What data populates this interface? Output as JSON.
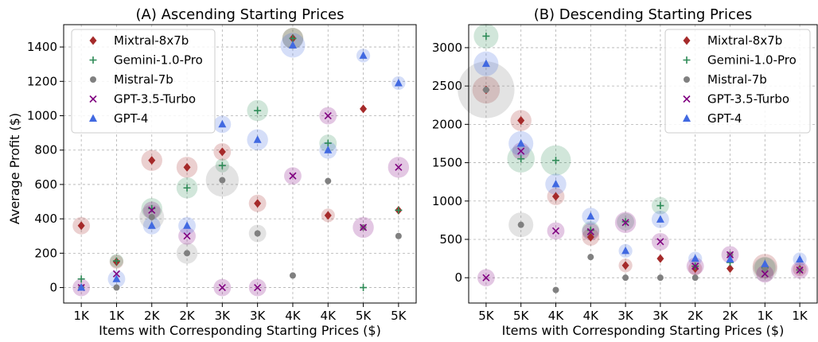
{
  "figure": {
    "y_label": "Average Profit ($)"
  },
  "colors": {
    "Mixtral-8x7b": "#a52a2a",
    "Gemini-1.0-Pro": "#2e8b57",
    "Mistral-7b": "#808080",
    "GPT-3.5-Turbo": "#800080",
    "GPT-4": "#4169e1"
  },
  "markers": {
    "Mixtral-8x7b": "diamond",
    "Gemini-1.0-Pro": "plus",
    "Mistral-7b": "circle",
    "GPT-3.5-Turbo": "x",
    "GPT-4": "triangle"
  },
  "chart_data": [
    {
      "type": "scatter",
      "title": "(A) Ascending Starting Prices",
      "xlabel": "Items with Corresponding Starting Prices ($)",
      "ylabel": "Average Profit ($)",
      "categories": [
        "1K",
        "1K",
        "2K",
        "2K",
        "3K",
        "3K",
        "4K",
        "4K",
        "5K",
        "5K"
      ],
      "ylim": [
        -90,
        1530
      ],
      "yticks": [
        0,
        200,
        400,
        600,
        800,
        1000,
        1200,
        1400
      ],
      "grid": true,
      "legend": "top-left",
      "series": [
        {
          "name": "Mixtral-8x7b",
          "values": [
            360,
            150,
            740,
            700,
            790,
            490,
            1450,
            420,
            1040,
            450
          ],
          "sizes": [
            2,
            1,
            3,
            3,
            2,
            2,
            3,
            1,
            0,
            0
          ]
        },
        {
          "name": "Gemini-1.0-Pro",
          "values": [
            50,
            155,
            460,
            580,
            710,
            1030,
            1450,
            840,
            0,
            450
          ],
          "sizes": [
            0,
            1,
            3,
            3,
            1,
            3,
            3,
            2,
            0,
            0
          ]
        },
        {
          "name": "Mistral-7b",
          "values": [
            0,
            0,
            410,
            200,
            625,
            315,
            70,
            620,
            350,
            300
          ],
          "sizes": [
            0,
            0,
            4,
            3,
            7,
            2,
            0,
            0,
            0,
            0
          ]
        },
        {
          "name": "GPT-3.5-Turbo",
          "values": [
            0,
            80,
            450,
            300,
            0,
            0,
            650,
            1000,
            350,
            700
          ],
          "sizes": [
            2,
            0,
            2,
            2,
            2,
            2,
            2,
            2,
            3,
            3
          ]
        },
        {
          "name": "GPT-4",
          "values": [
            0,
            50,
            360,
            360,
            950,
            860,
            1410,
            800,
            1350,
            1190
          ],
          "sizes": [
            0,
            2,
            2,
            2,
            2,
            3,
            4,
            2,
            1,
            1
          ]
        }
      ]
    },
    {
      "type": "scatter",
      "title": "(B) Descending Starting Prices",
      "xlabel": "Items with Corresponding Starting Prices ($)",
      "ylabel": "",
      "categories": [
        "5K",
        "5K",
        "4K",
        "4K",
        "3K",
        "3K",
        "2K",
        "2K",
        "1K",
        "1K"
      ],
      "ylim": [
        -330,
        3300
      ],
      "yticks": [
        0,
        500,
        1000,
        1500,
        2000,
        2500,
        3000
      ],
      "grid": true,
      "legend": "top-right",
      "series": [
        {
          "name": "Mixtral-8x7b",
          "values": [
            2450,
            2050,
            1060,
            530,
            160,
            250,
            120,
            120,
            150,
            110
          ],
          "sizes": [
            5,
            3,
            2,
            2,
            1,
            0,
            1,
            0,
            4,
            1
          ]
        },
        {
          "name": "Gemini-1.0-Pro",
          "values": [
            3150,
            1550,
            1530,
            620,
            730,
            940,
            150,
            200,
            130,
            100
          ],
          "sizes": [
            4,
            5,
            6,
            2,
            2,
            2,
            0,
            0,
            3,
            0
          ]
        },
        {
          "name": "Mistral-7b",
          "values": [
            2450,
            690,
            -160,
            270,
            0,
            0,
            0,
            300,
            110,
            100
          ],
          "sizes": [
            9,
            4,
            0,
            0,
            0,
            0,
            0,
            0,
            4,
            0
          ]
        },
        {
          "name": "GPT-3.5-Turbo",
          "values": [
            0,
            1650,
            610,
            600,
            720,
            470,
            150,
            300,
            50,
            100
          ],
          "sizes": [
            2,
            2,
            2,
            2,
            3,
            2,
            2,
            2,
            2,
            2
          ]
        },
        {
          "name": "GPT-4",
          "values": [
            2790,
            1750,
            1220,
            800,
            350,
            760,
            250,
            240,
            180,
            240
          ],
          "sizes": [
            4,
            4,
            3,
            2,
            1,
            2,
            1,
            0,
            0,
            1
          ]
        }
      ]
    }
  ]
}
